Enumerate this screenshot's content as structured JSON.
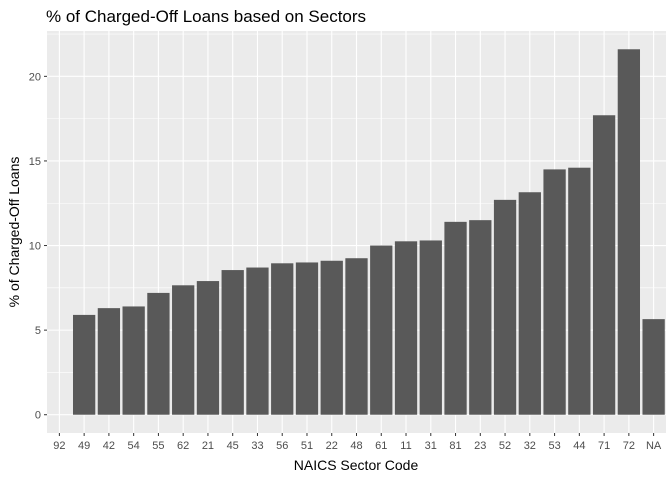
{
  "chart_data": {
    "type": "bar",
    "title": "% of Charged-Off Loans based on Sectors",
    "xlabel": "NAICS Sector Code",
    "ylabel": "% of Charged-Off Loans",
    "categories": [
      "92",
      "49",
      "42",
      "54",
      "55",
      "62",
      "21",
      "45",
      "33",
      "56",
      "51",
      "22",
      "48",
      "61",
      "11",
      "31",
      "81",
      "23",
      "52",
      "32",
      "53",
      "44",
      "71",
      "72",
      "NA"
    ],
    "values": [
      0,
      5.9,
      6.3,
      6.4,
      7.2,
      7.65,
      7.9,
      8.55,
      8.7,
      8.95,
      9.0,
      9.1,
      9.25,
      10.0,
      10.25,
      10.3,
      11.4,
      11.5,
      12.7,
      13.15,
      14.5,
      14.6,
      17.7,
      21.6,
      5.65
    ],
    "ylim": [
      -1.08,
      22.68
    ],
    "yticks": [
      0,
      5,
      10,
      15,
      20
    ],
    "grid": true,
    "legend": "none",
    "colors": {
      "panel_background": "#ebebeb",
      "grid_major": "#ffffff",
      "bar_fill": "#595959",
      "tick_text": "#4d4d4d",
      "tick_mark": "#333333"
    }
  }
}
